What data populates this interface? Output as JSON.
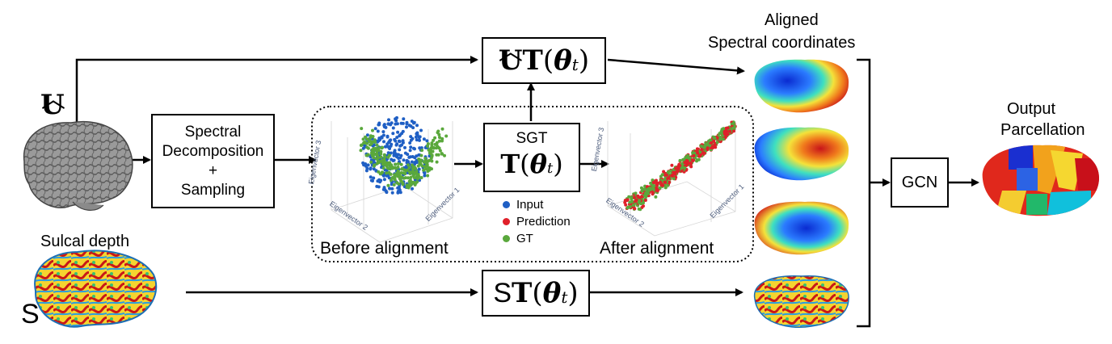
{
  "inputs": {
    "u_hat_label": "U",
    "sulcal_depth_label": "Sulcal depth",
    "s_label": "S"
  },
  "boxes": {
    "spectral": {
      "line1": "Spectral",
      "line2": "Decomposition",
      "line3": "+",
      "line4": "Sampling"
    },
    "ut": {
      "base": "U",
      "op": "T",
      "theta": "θ",
      "sub": "t"
    },
    "sgt": {
      "title": "SGT",
      "op": "T",
      "theta": "θ",
      "sub": "t"
    },
    "st": {
      "base": "S",
      "op": "T",
      "theta": "θ",
      "sub": "t"
    },
    "gcn": {
      "label": "GCN"
    }
  },
  "alignment": {
    "before_label": "Before alignment",
    "after_label": "After alignment",
    "axis_labels": {
      "ev1": "Eigenvector 1",
      "ev2": "Eigenvector 2",
      "ev3": "Eigenvector 3"
    },
    "legend": [
      {
        "label": "Input",
        "color": "#1f5fc4"
      },
      {
        "label": "Prediction",
        "color": "#e0202a"
      },
      {
        "label": "GT",
        "color": "#5aa83c"
      }
    ]
  },
  "outputs": {
    "aligned_line1": "Aligned",
    "aligned_line2": "Spectral coordinates",
    "parcellation_line1": "Output",
    "parcellation_line2": "Parcellation"
  },
  "colors": {
    "input": "#1f5fc4",
    "prediction": "#e0202a",
    "gt": "#5aa83c",
    "brain_gray": "#8a8a8a"
  }
}
